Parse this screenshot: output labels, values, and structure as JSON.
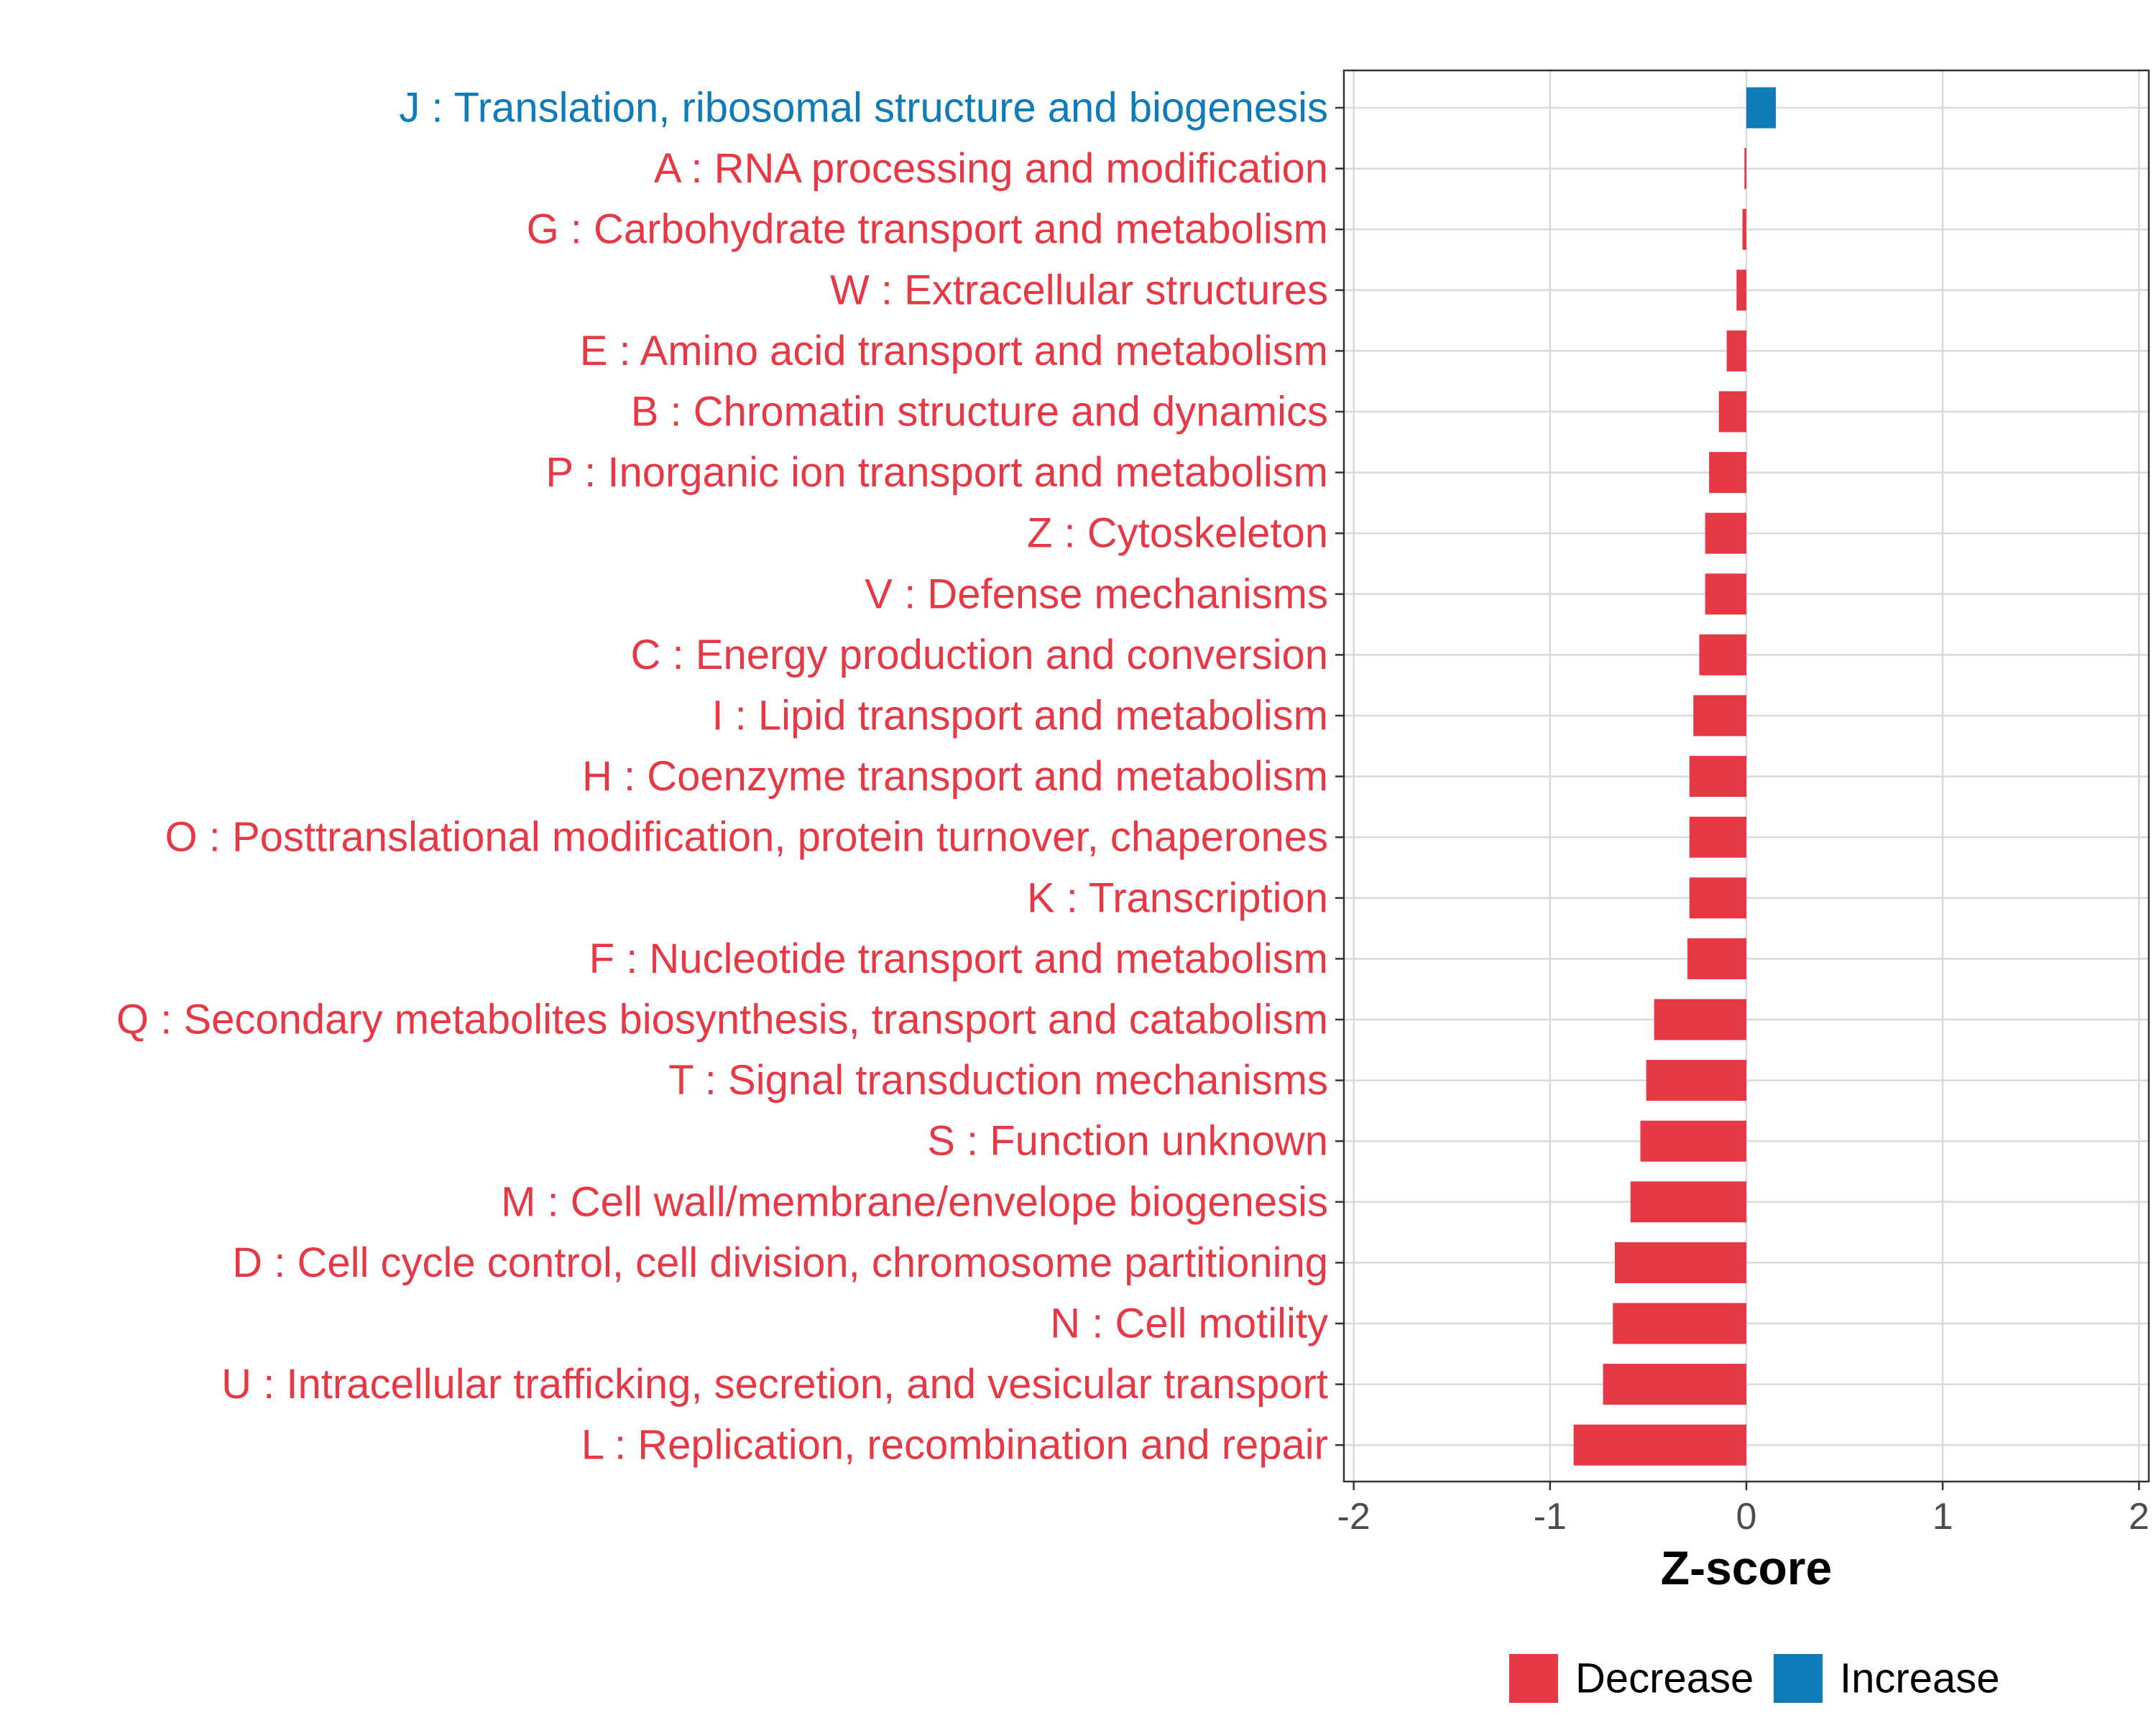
{
  "chart_data": {
    "type": "bar",
    "orientation": "horizontal",
    "title": "",
    "xlabel": "Z-score",
    "ylabel": "",
    "xlim": [
      -2.05,
      2.05
    ],
    "xticks": [
      -2,
      -1,
      0,
      1,
      2
    ],
    "xtick_labels": [
      "-2",
      "-1",
      "0",
      "1",
      "2"
    ],
    "grid": true,
    "categories": [
      "J : Translation, ribosomal structure and biogenesis",
      "A : RNA processing and modification",
      "G : Carbohydrate transport and metabolism",
      "W : Extracellular structures",
      "E : Amino acid transport and metabolism",
      "B : Chromatin structure and dynamics",
      "P : Inorganic ion transport and metabolism",
      "Z : Cytoskeleton",
      "V : Defense mechanisms",
      "C : Energy production and conversion",
      "I : Lipid transport and metabolism",
      "H : Coenzyme transport and metabolism",
      "O : Posttranslational modification, protein turnover, chaperones",
      "K : Transcription",
      "F : Nucleotide transport and metabolism",
      "Q : Secondary metabolites biosynthesis, transport and catabolism",
      "T : Signal transduction mechanisms",
      "S : Function unknown",
      "M : Cell wall/membrane/envelope biogenesis",
      "D : Cell cycle control, cell division, chromosome partitioning",
      "N : Cell motility",
      "U : Intracellular trafficking, secretion, and vesicular transport",
      "L : Replication, recombination and repair"
    ],
    "values": [
      0.15,
      -0.01,
      -0.02,
      -0.05,
      -0.1,
      -0.14,
      -0.19,
      -0.21,
      -0.21,
      -0.24,
      -0.27,
      -0.29,
      -0.29,
      -0.29,
      -0.3,
      -0.47,
      -0.51,
      -0.54,
      -0.59,
      -0.67,
      -0.68,
      -0.73,
      -0.88
    ],
    "direction": [
      "Increase",
      "Decrease",
      "Decrease",
      "Decrease",
      "Decrease",
      "Decrease",
      "Decrease",
      "Decrease",
      "Decrease",
      "Decrease",
      "Decrease",
      "Decrease",
      "Decrease",
      "Decrease",
      "Decrease",
      "Decrease",
      "Decrease",
      "Decrease",
      "Decrease",
      "Decrease",
      "Decrease",
      "Decrease",
      "Decrease"
    ],
    "legend": {
      "position": "bottom",
      "entries": [
        {
          "label": "Decrease",
          "color": "#E63946"
        },
        {
          "label": "Increase",
          "color": "#0F7BB8"
        }
      ]
    }
  }
}
